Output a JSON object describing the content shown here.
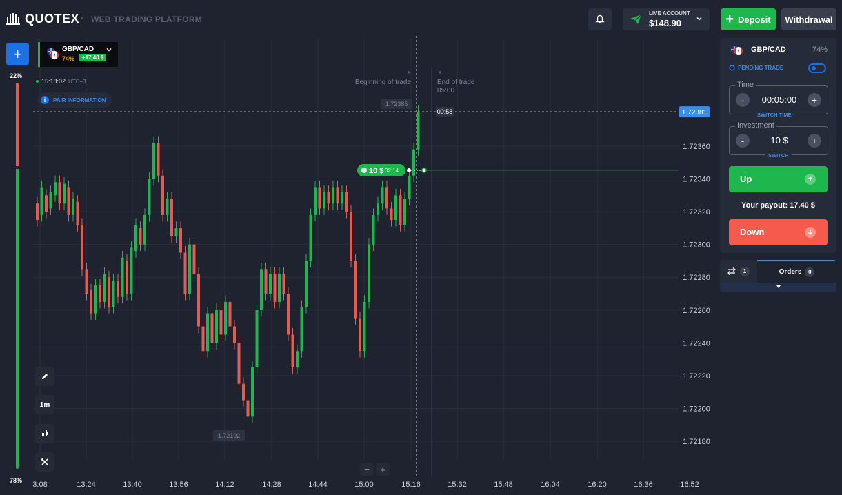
{
  "header": {
    "logo_text": "QUOTEX",
    "platform_label": "WEB TRADING PLATFORM",
    "account_label": "LIVE ACCOUNT",
    "account_balance": "$148.90",
    "deposit_label": "Deposit",
    "withdrawal_label": "Withdrawal"
  },
  "sentiment": {
    "top_pct": "22%",
    "bottom_pct": "78%",
    "down_fraction": 0.22,
    "up_fraction": 0.78
  },
  "chart": {
    "asset": {
      "name": "GBP/CAD",
      "payout_pct": "74%",
      "profit": "+17.40 $"
    },
    "time": "15:18:02",
    "timezone": "UTC+3",
    "pair_info_label": "PAIR INFORMATION",
    "current_price": "1.72381",
    "countdown": "00:58",
    "high_label": "1.72385",
    "low_label": "1.72192",
    "beginning_of_trade": "Beginning of trade",
    "end_of_trade": "End of trade",
    "end_time": "05:00",
    "trade_amount": "10 $",
    "trade_time": "02:14",
    "timeframe": "1m",
    "price_labels": [
      "1.72360",
      "1.72340",
      "1.72320",
      "1.72300",
      "1.72280",
      "1.72260",
      "1.72240",
      "1.72220",
      "1.72200",
      "1.72180"
    ],
    "time_labels": [
      "3:08",
      "13:24",
      "13:40",
      "13:56",
      "14:12",
      "14:28",
      "14:44",
      "15:00",
      "15:16",
      "15:32",
      "15:48",
      "16:04",
      "16:20",
      "16:36",
      "16:52"
    ],
    "zoom_minus": "−",
    "zoom_plus": "+"
  },
  "chart_data": {
    "type": "candlestick",
    "ylim": [
      1.7217,
      1.72395
    ],
    "colors": {
      "up": "#1eb74d",
      "down": "#e65a4f"
    },
    "candles": [
      [
        1.72325,
        1.72315
      ],
      [
        1.72318,
        1.72335
      ],
      [
        1.7233,
        1.7232
      ],
      [
        1.72322,
        1.72332
      ],
      [
        1.7233,
        1.72338
      ],
      [
        1.72338,
        1.72325
      ],
      [
        1.72325,
        1.72337
      ],
      [
        1.72335,
        1.72318
      ],
      [
        1.72318,
        1.72328
      ],
      [
        1.72326,
        1.72312
      ],
      [
        1.72312,
        1.72285
      ],
      [
        1.72285,
        1.7227
      ],
      [
        1.72272,
        1.72258
      ],
      [
        1.72258,
        1.72275
      ],
      [
        1.72275,
        1.72265
      ],
      [
        1.72265,
        1.72282
      ],
      [
        1.7228,
        1.72262
      ],
      [
        1.72262,
        1.72278
      ],
      [
        1.72278,
        1.72268
      ],
      [
        1.72268,
        1.72292
      ],
      [
        1.7229,
        1.7227
      ],
      [
        1.7227,
        1.72298
      ],
      [
        1.72296,
        1.72312
      ],
      [
        1.7231,
        1.723
      ],
      [
        1.723,
        1.72318
      ],
      [
        1.72318,
        1.7234
      ],
      [
        1.7234,
        1.72362
      ],
      [
        1.72362,
        1.72342
      ],
      [
        1.72342,
        1.72318
      ],
      [
        1.72318,
        1.72328
      ],
      [
        1.72328,
        1.72305
      ],
      [
        1.72305,
        1.7231
      ],
      [
        1.7231,
        1.72295
      ],
      [
        1.72295,
        1.7227
      ],
      [
        1.7227,
        1.723
      ],
      [
        1.723,
        1.72282
      ],
      [
        1.72282,
        1.7225
      ],
      [
        1.7225,
        1.72235
      ],
      [
        1.72235,
        1.72258
      ],
      [
        1.72258,
        1.7224
      ],
      [
        1.7224,
        1.7226
      ],
      [
        1.7226,
        1.72245
      ],
      [
        1.72245,
        1.72265
      ],
      [
        1.72265,
        1.7225
      ],
      [
        1.7225,
        1.7224
      ],
      [
        1.7224,
        1.72215
      ],
      [
        1.72215,
        1.72205
      ],
      [
        1.72205,
        1.72195
      ],
      [
        1.72195,
        1.72225
      ],
      [
        1.72225,
        1.7226
      ],
      [
        1.7226,
        1.72285
      ],
      [
        1.72285,
        1.7227
      ],
      [
        1.7227,
        1.72282
      ],
      [
        1.72282,
        1.72265
      ],
      [
        1.72265,
        1.72282
      ],
      [
        1.72282,
        1.7227
      ],
      [
        1.7227,
        1.72245
      ],
      [
        1.72245,
        1.72225
      ],
      [
        1.72225,
        1.72235
      ],
      [
        1.72235,
        1.72262
      ],
      [
        1.72262,
        1.7229
      ],
      [
        1.7229,
        1.72318
      ],
      [
        1.72318,
        1.72335
      ],
      [
        1.72335,
        1.72322
      ],
      [
        1.72322,
        1.72332
      ],
      [
        1.72332,
        1.72325
      ],
      [
        1.72325,
        1.72335
      ],
      [
        1.72335,
        1.72325
      ],
      [
        1.72325,
        1.72332
      ],
      [
        1.72332,
        1.7232
      ],
      [
        1.7232,
        1.7229
      ],
      [
        1.7229,
        1.72255
      ],
      [
        1.72255,
        1.72235
      ],
      [
        1.72235,
        1.72265
      ],
      [
        1.72265,
        1.723
      ],
      [
        1.723,
        1.72318
      ],
      [
        1.72318,
        1.72325
      ],
      [
        1.72325,
        1.72335
      ],
      [
        1.72335,
        1.72322
      ],
      [
        1.72322,
        1.72315
      ],
      [
        1.72315,
        1.7233
      ],
      [
        1.7233,
        1.72312
      ],
      [
        1.72312,
        1.72328
      ],
      [
        1.72328,
        1.72342
      ],
      [
        1.72342,
        1.72358
      ],
      [
        1.72358,
        1.72381
      ]
    ]
  },
  "panel": {
    "asset": "GBP/CAD",
    "payout_pct": "74%",
    "pending_trade_label": "PENDING TRADE",
    "time_label": "Time",
    "time_value": "00:05:00",
    "switch_time_label": "SWITCH TIME",
    "investment_label": "Investment",
    "investment_value": "10 $",
    "switch_label": "SWITCH",
    "up_label": "Up",
    "down_label": "Down",
    "payout_label": "Your payout: 17.40 $"
  },
  "tabs": {
    "trades_count": "1",
    "orders_label": "Orders",
    "orders_count": "0"
  }
}
